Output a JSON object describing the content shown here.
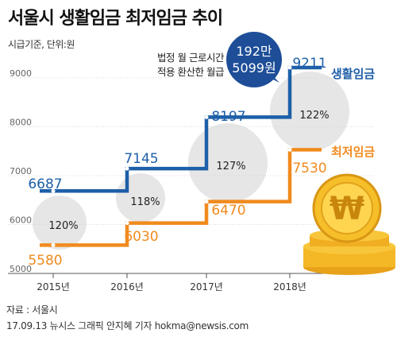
{
  "title": "서울시 생활임금 최저임금 추이",
  "unit_note": "시급기준, 단위:원",
  "annotation": {
    "line1": "법정 월 근로시간",
    "line2": "적용 환산한 월급",
    "bubble_line1": "192만",
    "bubble_line2": "5099원"
  },
  "source_label": "자료 : 서울시",
  "credit": "17.09.13 뉴시스 그래픽 안지혜 기자 hokma@newsis.com",
  "colors": {
    "living": "#1d5fa8",
    "minimum": "#f08a1e",
    "bubble": "#1e4e98",
    "circle": "#e6e6e6"
  },
  "chart_data": {
    "type": "line",
    "x": [
      "2015년",
      "2016년",
      "2017년",
      "2018년"
    ],
    "ylim": [
      5000,
      9500
    ],
    "yticks": [
      5000,
      6000,
      7000,
      8000,
      9000
    ],
    "series": [
      {
        "name": "생활임금",
        "values": [
          6687,
          7145,
          8197,
          9211
        ]
      },
      {
        "name": "최저임금",
        "values": [
          5580,
          6030,
          6470,
          7530
        ]
      }
    ],
    "ratios": [
      "120%",
      "118%",
      "127%",
      "122%"
    ],
    "step_style": true
  }
}
